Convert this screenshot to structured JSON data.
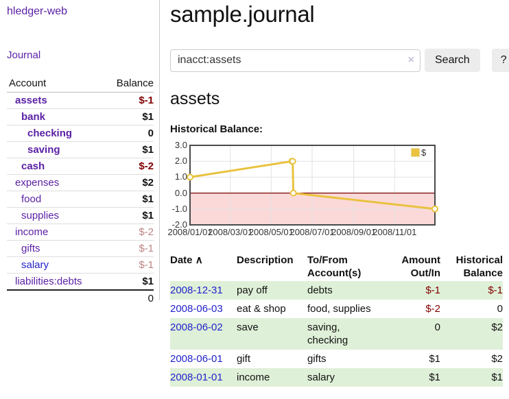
{
  "app": {
    "title": "hledger-web",
    "nav": {
      "journal": "Journal"
    }
  },
  "sidebar": {
    "headers": {
      "account": "Account",
      "balance": "Balance"
    },
    "accounts": [
      {
        "name": "assets",
        "depth": 0,
        "bold": true,
        "link_style": "purple",
        "balance": "$-1",
        "balance_class": "bal-neg"
      },
      {
        "name": "bank",
        "depth": 1,
        "bold": true,
        "link_style": "purple",
        "balance": "$1",
        "balance_class": "bal-pos"
      },
      {
        "name": "checking",
        "depth": 2,
        "bold": true,
        "link_style": "purple",
        "balance": "0",
        "balance_class": "bal-pos"
      },
      {
        "name": "saving",
        "depth": 2,
        "bold": true,
        "link_style": "purple",
        "balance": "$1",
        "balance_class": "bal-pos"
      },
      {
        "name": "cash",
        "depth": 1,
        "bold": true,
        "link_style": "purple",
        "balance": "$-2",
        "balance_class": "bal-neg"
      },
      {
        "name": "expenses",
        "depth": 0,
        "bold": false,
        "link_style": "purple",
        "balance": "$2",
        "balance_class": "bal-pos"
      },
      {
        "name": "food",
        "depth": 1,
        "bold": false,
        "link_style": "purple",
        "balance": "$1",
        "balance_class": "bal-pos"
      },
      {
        "name": "supplies",
        "depth": 1,
        "bold": false,
        "link_style": "purple",
        "balance": "$1",
        "balance_class": "bal-pos"
      },
      {
        "name": "income",
        "depth": 0,
        "bold": false,
        "link_style": "purple",
        "balance": "$-2",
        "balance_class": "bal-faded"
      },
      {
        "name": "gifts",
        "depth": 1,
        "bold": false,
        "link_style": "purple",
        "balance": "$-1",
        "balance_class": "bal-faded"
      },
      {
        "name": "salary",
        "depth": 1,
        "bold": false,
        "link_style": "blue",
        "balance": "$-1",
        "balance_class": "bal-faded"
      },
      {
        "name": "liabilities:debts",
        "depth": 0,
        "bold": false,
        "link_style": "purple",
        "balance": "$1",
        "balance_class": "bal-pos"
      }
    ],
    "total": "0"
  },
  "main": {
    "title": "sample.journal",
    "search": {
      "value": "inacct:assets",
      "clear_icon": "×",
      "button_label": "Search",
      "help_label": "?"
    },
    "account_heading": "assets",
    "chart_title": "Historical Balance:"
  },
  "chart_data": {
    "type": "line",
    "title": "Historical Balance:",
    "ylabel": "",
    "xlabel": "",
    "ylim": [
      -2.0,
      3.0
    ],
    "x_range_days": [
      0,
      365
    ],
    "grid": true,
    "legend": {
      "label": "$",
      "position": "top-right"
    },
    "series": [
      {
        "name": "$",
        "color": "#e9c23f",
        "points": [
          {
            "date": "2008-01-01",
            "day": 0,
            "value": 1
          },
          {
            "date": "2008-06-01",
            "day": 152,
            "value": 2
          },
          {
            "date": "2008-06-02",
            "day": 153,
            "value": 2
          },
          {
            "date": "2008-06-03",
            "day": 154,
            "value": 0
          },
          {
            "date": "2008-12-31",
            "day": 365,
            "value": -1
          }
        ]
      }
    ],
    "y_ticks": [
      {
        "value": 3,
        "label": "3.0"
      },
      {
        "value": 2,
        "label": "2.0"
      },
      {
        "value": 1,
        "label": "1.0"
      },
      {
        "value": 0,
        "label": "0.0"
      },
      {
        "value": -1,
        "label": "-1.0"
      },
      {
        "value": -2,
        "label": "-2.0"
      }
    ],
    "x_ticks": [
      {
        "day": 0,
        "label": "2008/01/01"
      },
      {
        "day": 60,
        "label": "2008/03/01"
      },
      {
        "day": 121,
        "label": "2008/05/01"
      },
      {
        "day": 182,
        "label": "2008/07/01"
      },
      {
        "day": 244,
        "label": "2008/09/01"
      },
      {
        "day": 305,
        "label": "2008/11/01"
      }
    ],
    "colors": {
      "negative_region": "#fbd9d9",
      "zero_line": "#7a0000",
      "grid": "#e2e2e2",
      "border": "#4a4a4a",
      "marker_fill": "#ffffff"
    }
  },
  "register": {
    "headers": {
      "date": "Date",
      "sort_icon": "∧",
      "description": "Description",
      "tofrom_line1": "To/From",
      "tofrom_line2": "Account(s)",
      "amount_line1": "Amount",
      "amount_line2": "Out/In",
      "balance_line1": "Historical",
      "balance_line2": "Balance"
    },
    "rows": [
      {
        "date": "2008-12-31",
        "description": "pay off",
        "accounts": "debts",
        "amount": "$-1",
        "amount_class": "amt-neg",
        "balance": "$-1",
        "balance_class": "amt-neg",
        "highlighted": true
      },
      {
        "date": "2008-06-03",
        "description": "eat & shop",
        "accounts": "food, supplies",
        "amount": "$-2",
        "amount_class": "amt-neg",
        "balance": "0",
        "balance_class": "amt-pos",
        "highlighted": false
      },
      {
        "date": "2008-06-02",
        "description": "save",
        "accounts": "saving, checking",
        "amount": "0",
        "amount_class": "amt-pos",
        "balance": "$2",
        "balance_class": "amt-pos",
        "highlighted": true
      },
      {
        "date": "2008-06-01",
        "description": "gift",
        "accounts": "gifts",
        "amount": "$1",
        "amount_class": "amt-pos",
        "balance": "$2",
        "balance_class": "amt-pos",
        "highlighted": false
      },
      {
        "date": "2008-01-01",
        "description": "income",
        "accounts": "salary",
        "amount": "$1",
        "amount_class": "amt-pos",
        "balance": "$1",
        "balance_class": "amt-pos",
        "highlighted": true
      }
    ]
  }
}
